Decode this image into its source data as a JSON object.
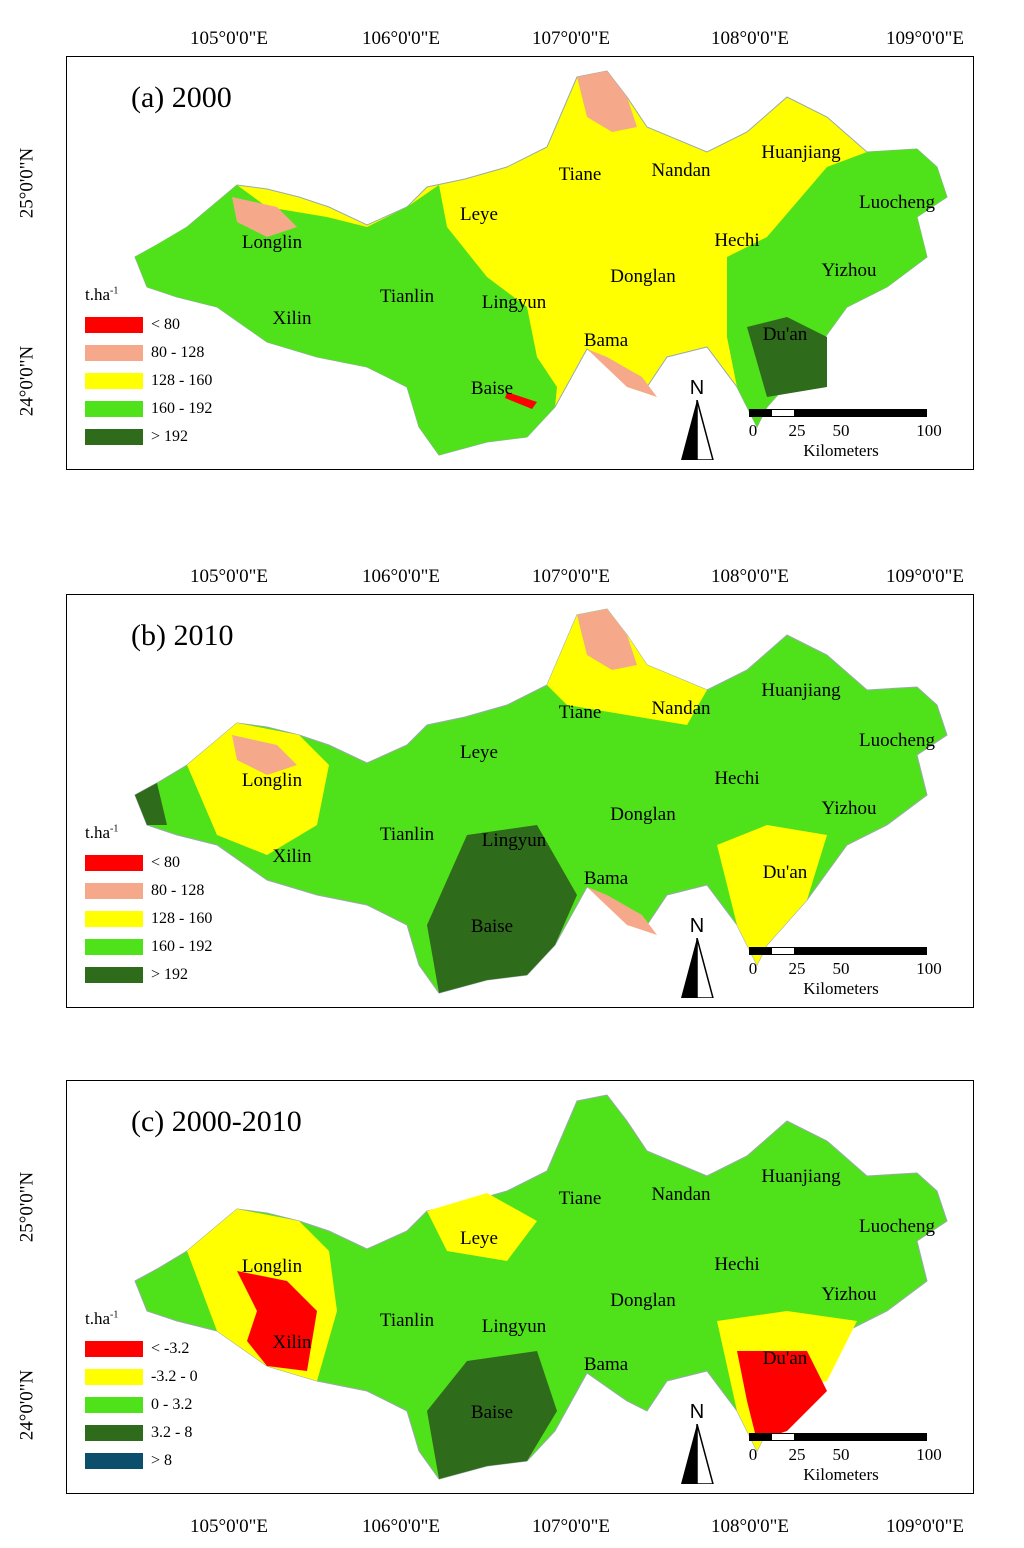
{
  "longitude_labels": [
    "105°0'0\"E",
    "106°0'0\"E",
    "107°0'0\"E",
    "108°0'0\"E",
    "109°0'0\"E"
  ],
  "latitude_labels": [
    "25°0'0\"N",
    "24°0'0\"N"
  ],
  "place_names": {
    "longlin": "Longlin",
    "xilin": "Xilin",
    "tianlin": "Tianlin",
    "leye": "Leye",
    "lingyun": "Lingyun",
    "baise": "Baise",
    "tiane": "Tiane",
    "nandan": "Nandan",
    "donglan": "Donglan",
    "bama": "Bama",
    "huanjiang": "Huanjiang",
    "hechi": "Hechi",
    "luocheng": "Luocheng",
    "yizhou": "Yizhou",
    "duan": "Du'an"
  },
  "north_label": "N",
  "scale": {
    "ticks": [
      "0",
      "25",
      "50",
      "100"
    ],
    "units": "Kilometers"
  },
  "panels": [
    {
      "title": "(a) 2000",
      "legend_unit": "t.ha",
      "legend_unit_sup": "-1",
      "legend": [
        {
          "label": "< 80",
          "color": "#ff0000"
        },
        {
          "label": "80 - 128",
          "color": "#f5a98a"
        },
        {
          "label": "128 - 160",
          "color": "#ffff00"
        },
        {
          "label": "160 - 192",
          "color": "#4fe21a"
        },
        {
          "label": "> 192",
          "color": "#2e6b1a"
        }
      ]
    },
    {
      "title": "(b) 2010",
      "legend_unit": "t.ha",
      "legend_unit_sup": "-1",
      "legend": [
        {
          "label": "< 80",
          "color": "#ff0000"
        },
        {
          "label": "80 - 128",
          "color": "#f5a98a"
        },
        {
          "label": "128 - 160",
          "color": "#ffff00"
        },
        {
          "label": "160 - 192",
          "color": "#4fe21a"
        },
        {
          "label": "> 192",
          "color": "#2e6b1a"
        }
      ]
    },
    {
      "title": "(c) 2000-2010",
      "legend_unit": "t.ha",
      "legend_unit_sup": "-1",
      "legend": [
        {
          "label": "< -3.2",
          "color": "#ff0000"
        },
        {
          "label": "-3.2 - 0",
          "color": "#ffff00"
        },
        {
          "label": "0 - 3.2",
          "color": "#4fe21a"
        },
        {
          "label": "3.2 - 8",
          "color": "#2e6b1a"
        },
        {
          "label": "> 8",
          "color": "#0b4f6c"
        }
      ]
    }
  ]
}
